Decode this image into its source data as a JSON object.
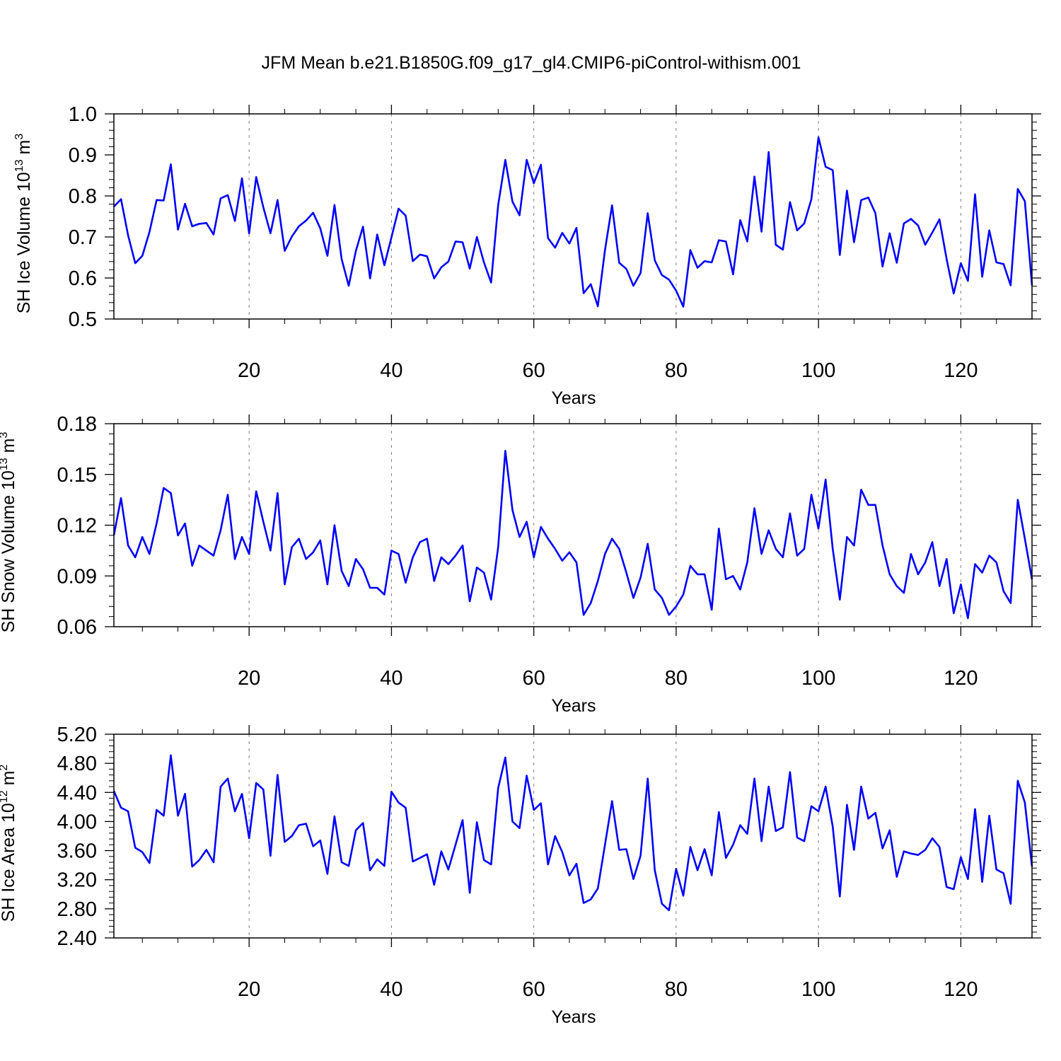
{
  "title": "JFM Mean b.e21.B1850G.f09_g17_gl4.CMIP6-piControl-withism.001",
  "chart_data": [
    {
      "type": "line",
      "name": "ice-volume",
      "ylabel": "SH Ice Volume 10",
      "ylabel_exp": "13",
      "ylabel_unit": " m",
      "ylabel_unit_exp": "3",
      "xlabel": "Years",
      "xlim": [
        1,
        130
      ],
      "ylim": [
        0.5,
        1.0
      ],
      "ytick_values": [
        0.5,
        0.6,
        0.7,
        0.8,
        0.9,
        1.0
      ],
      "ytick_labels": [
        "0.5",
        "0.6",
        "0.7",
        "0.8",
        "0.9",
        "1.0"
      ],
      "xtick_values": [
        20,
        40,
        60,
        80,
        100,
        120
      ],
      "xtick_labels": [
        "20",
        "40",
        "60",
        "80",
        "100",
        "120"
      ],
      "grid_x": [
        20,
        40,
        60,
        80,
        100,
        120
      ],
      "line_color": "#0000ff",
      "x_start": 1,
      "values": [
        0.774,
        0.792,
        0.704,
        0.636,
        0.654,
        0.712,
        0.79,
        0.789,
        0.877,
        0.718,
        0.781,
        0.726,
        0.732,
        0.734,
        0.706,
        0.794,
        0.802,
        0.739,
        0.843,
        0.709,
        0.846,
        0.772,
        0.709,
        0.79,
        0.666,
        0.701,
        0.726,
        0.74,
        0.759,
        0.721,
        0.654,
        0.778,
        0.646,
        0.581,
        0.666,
        0.725,
        0.599,
        0.706,
        0.631,
        0.699,
        0.769,
        0.752,
        0.641,
        0.657,
        0.653,
        0.599,
        0.626,
        0.64,
        0.689,
        0.687,
        0.623,
        0.7,
        0.638,
        0.589,
        0.778,
        0.888,
        0.786,
        0.753,
        0.888,
        0.831,
        0.876,
        0.697,
        0.674,
        0.71,
        0.684,
        0.722,
        0.563,
        0.585,
        0.531,
        0.668,
        0.777,
        0.637,
        0.622,
        0.581,
        0.612,
        0.758,
        0.643,
        0.607,
        0.596,
        0.569,
        0.53,
        0.668,
        0.625,
        0.641,
        0.638,
        0.692,
        0.689,
        0.609,
        0.741,
        0.689,
        0.847,
        0.713,
        0.907,
        0.681,
        0.669,
        0.785,
        0.716,
        0.733,
        0.792,
        0.943,
        0.871,
        0.863,
        0.656,
        0.813,
        0.687,
        0.79,
        0.796,
        0.758,
        0.628,
        0.709,
        0.637,
        0.733,
        0.744,
        0.728,
        0.681,
        0.711,
        0.743,
        0.646,
        0.562,
        0.636,
        0.593,
        0.804,
        0.603,
        0.716,
        0.638,
        0.634,
        0.582,
        0.817,
        0.787,
        0.582
      ]
    },
    {
      "type": "line",
      "name": "snow-volume",
      "ylabel": "SH Snow Volume 10",
      "ylabel_exp": "13",
      "ylabel_unit": " m",
      "ylabel_unit_exp": "3",
      "xlabel": "Years",
      "xlim": [
        1,
        130
      ],
      "ylim": [
        0.06,
        0.18
      ],
      "ytick_values": [
        0.06,
        0.09,
        0.12,
        0.15,
        0.18
      ],
      "ytick_labels": [
        "0.06",
        "0.09",
        "0.12",
        "0.15",
        "0.18"
      ],
      "xtick_values": [
        20,
        40,
        60,
        80,
        100,
        120
      ],
      "xtick_labels": [
        "20",
        "40",
        "60",
        "80",
        "100",
        "120"
      ],
      "grid_x": [
        20,
        40,
        60,
        80,
        100,
        120
      ],
      "line_color": "#0000ff",
      "x_start": 1,
      "values": [
        0.114,
        0.136,
        0.108,
        0.101,
        0.113,
        0.103,
        0.121,
        0.142,
        0.139,
        0.114,
        0.121,
        0.096,
        0.108,
        0.105,
        0.102,
        0.117,
        0.138,
        0.1,
        0.113,
        0.103,
        0.14,
        0.122,
        0.105,
        0.139,
        0.085,
        0.107,
        0.112,
        0.1,
        0.104,
        0.111,
        0.085,
        0.12,
        0.093,
        0.084,
        0.1,
        0.094,
        0.083,
        0.083,
        0.079,
        0.105,
        0.103,
        0.086,
        0.101,
        0.11,
        0.112,
        0.087,
        0.101,
        0.097,
        0.102,
        0.108,
        0.075,
        0.095,
        0.092,
        0.076,
        0.107,
        0.164,
        0.129,
        0.113,
        0.122,
        0.101,
        0.119,
        0.112,
        0.106,
        0.099,
        0.104,
        0.098,
        0.067,
        0.074,
        0.087,
        0.103,
        0.112,
        0.106,
        0.092,
        0.077,
        0.089,
        0.109,
        0.082,
        0.077,
        0.067,
        0.072,
        0.079,
        0.096,
        0.091,
        0.091,
        0.07,
        0.118,
        0.088,
        0.09,
        0.082,
        0.098,
        0.13,
        0.103,
        0.117,
        0.106,
        0.101,
        0.127,
        0.102,
        0.106,
        0.138,
        0.118,
        0.147,
        0.106,
        0.076,
        0.113,
        0.108,
        0.141,
        0.132,
        0.132,
        0.108,
        0.091,
        0.084,
        0.08,
        0.103,
        0.091,
        0.098,
        0.11,
        0.084,
        0.1,
        0.068,
        0.085,
        0.065,
        0.097,
        0.092,
        0.102,
        0.098,
        0.081,
        0.074,
        0.135,
        0.112,
        0.088
      ]
    },
    {
      "type": "line",
      "name": "ice-area",
      "ylabel": "SH Ice Area 10",
      "ylabel_exp": "12",
      "ylabel_unit": " m",
      "ylabel_unit_exp": "2",
      "xlabel": "Years",
      "xlim": [
        1,
        130
      ],
      "ylim": [
        2.4,
        5.2
      ],
      "ytick_values": [
        2.4,
        2.8,
        3.2,
        3.6,
        4.0,
        4.4,
        4.8,
        5.2
      ],
      "ytick_labels": [
        "2.40",
        "2.80",
        "3.20",
        "3.60",
        "4.00",
        "4.40",
        "4.80",
        "5.20"
      ],
      "xtick_values": [
        20,
        40,
        60,
        80,
        100,
        120
      ],
      "xtick_labels": [
        "20",
        "40",
        "60",
        "80",
        "100",
        "120"
      ],
      "grid_x": [
        20,
        40,
        60,
        80,
        100,
        120
      ],
      "line_color": "#0000ff",
      "x_start": 1,
      "values": [
        4.42,
        4.19,
        4.14,
        3.64,
        3.58,
        3.43,
        4.16,
        4.08,
        4.91,
        4.08,
        4.38,
        3.38,
        3.47,
        3.61,
        3.44,
        4.48,
        4.59,
        4.14,
        4.38,
        3.77,
        4.53,
        4.44,
        3.53,
        4.64,
        3.72,
        3.8,
        3.95,
        3.97,
        3.66,
        3.74,
        3.28,
        4.07,
        3.44,
        3.39,
        3.88,
        3.98,
        3.33,
        3.48,
        3.39,
        4.41,
        4.26,
        4.19,
        3.45,
        3.5,
        3.55,
        3.13,
        3.59,
        3.34,
        3.68,
        4.02,
        3.02,
        3.99,
        3.47,
        3.41,
        4.46,
        4.88,
        4.0,
        3.91,
        4.63,
        4.16,
        4.25,
        3.41,
        3.8,
        3.58,
        3.26,
        3.42,
        2.88,
        2.93,
        3.08,
        3.68,
        4.28,
        3.61,
        3.62,
        3.21,
        3.53,
        4.59,
        3.33,
        2.87,
        2.78,
        3.35,
        2.98,
        3.65,
        3.33,
        3.62,
        3.26,
        4.13,
        3.5,
        3.68,
        3.95,
        3.83,
        4.59,
        3.73,
        4.48,
        3.87,
        3.92,
        4.68,
        3.78,
        3.73,
        4.21,
        4.14,
        4.48,
        3.93,
        2.97,
        4.23,
        3.61,
        4.48,
        4.04,
        4.12,
        3.63,
        3.88,
        3.24,
        3.59,
        3.56,
        3.54,
        3.61,
        3.77,
        3.65,
        3.1,
        3.07,
        3.51,
        3.21,
        4.17,
        3.17,
        4.08,
        3.34,
        3.29,
        2.87,
        4.56,
        4.26,
        3.38
      ]
    }
  ]
}
